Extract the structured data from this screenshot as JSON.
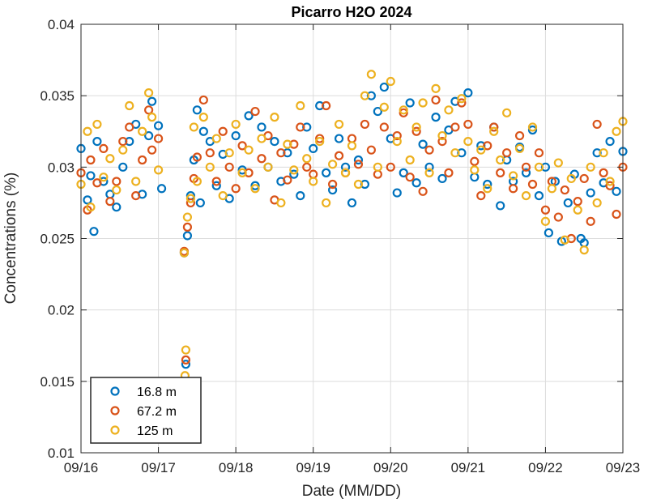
{
  "chart_data": {
    "type": "scatter",
    "title": "Picarro H2O 2024",
    "xlabel": "Date (MM/DD)",
    "ylabel": "Concentrations (%)",
    "xlim": [
      "09/16",
      "09/23"
    ],
    "ylim": [
      0.01,
      0.04
    ],
    "x_ticks": [
      "09/16",
      "09/17",
      "09/18",
      "09/19",
      "09/20",
      "09/21",
      "09/22",
      "09/23"
    ],
    "y_ticks": [
      "0.01",
      "0.015",
      "0.02",
      "0.025",
      "0.03",
      "0.035",
      "0.04"
    ],
    "grid": true,
    "legend_position": "bottom-left",
    "series": [
      {
        "name": "16.8 m",
        "color": "#0072BD",
        "points": [
          [
            "09/16 00:00",
            0.0313
          ],
          [
            "09/16 02:00",
            0.0277
          ],
          [
            "09/16 03:00",
            0.0294
          ],
          [
            "09/16 04:00",
            0.0255
          ],
          [
            "09/16 05:00",
            0.0318
          ],
          [
            "09/16 07:00",
            0.029
          ],
          [
            "09/16 09:00",
            0.0281
          ],
          [
            "09/16 11:00",
            0.0272
          ],
          [
            "09/16 13:00",
            0.03
          ],
          [
            "09/16 15:00",
            0.0318
          ],
          [
            "09/16 17:00",
            0.033
          ],
          [
            "09/16 19:00",
            0.0281
          ],
          [
            "09/16 21:00",
            0.0322
          ],
          [
            "09/16 22:00",
            0.0346
          ],
          [
            "09/17 00:00",
            0.0329
          ],
          [
            "09/17 01:00",
            0.0285
          ],
          [
            "09/17 08:00",
            0.024
          ],
          [
            "09/17 08:30",
            0.0162
          ],
          [
            "09/17 09:00",
            0.0252
          ],
          [
            "09/17 10:00",
            0.028
          ],
          [
            "09/17 11:00",
            0.0305
          ],
          [
            "09/17 12:00",
            0.034
          ],
          [
            "09/17 13:00",
            0.0275
          ],
          [
            "09/17 14:00",
            0.0325
          ],
          [
            "09/17 16:00",
            0.0318
          ],
          [
            "09/17 18:00",
            0.0287
          ],
          [
            "09/17 20:00",
            0.0309
          ],
          [
            "09/17 22:00",
            0.0278
          ],
          [
            "09/18 00:00",
            0.0322
          ],
          [
            "09/18 02:00",
            0.0298
          ],
          [
            "09/18 04:00",
            0.0336
          ],
          [
            "09/18 06:00",
            0.0287
          ],
          [
            "09/18 08:00",
            0.0328
          ],
          [
            "09/18 10:00",
            0.03
          ],
          [
            "09/18 12:00",
            0.0318
          ],
          [
            "09/18 14:00",
            0.029
          ],
          [
            "09/18 16:00",
            0.031
          ],
          [
            "09/18 18:00",
            0.0295
          ],
          [
            "09/18 20:00",
            0.028
          ],
          [
            "09/18 22:00",
            0.0328
          ],
          [
            "09/19 00:00",
            0.0313
          ],
          [
            "09/19 02:00",
            0.0343
          ],
          [
            "09/19 04:00",
            0.0296
          ],
          [
            "09/19 06:00",
            0.0284
          ],
          [
            "09/19 08:00",
            0.032
          ],
          [
            "09/19 10:00",
            0.03
          ],
          [
            "09/19 12:00",
            0.0275
          ],
          [
            "09/19 14:00",
            0.0305
          ],
          [
            "09/19 16:00",
            0.0288
          ],
          [
            "09/19 18:00",
            0.035
          ],
          [
            "09/19 20:00",
            0.0339
          ],
          [
            "09/19 22:00",
            0.0356
          ],
          [
            "09/20 00:00",
            0.032
          ],
          [
            "09/20 02:00",
            0.0282
          ],
          [
            "09/20 04:00",
            0.0296
          ],
          [
            "09/20 06:00",
            0.0345
          ],
          [
            "09/20 08:00",
            0.0289
          ],
          [
            "09/20 10:00",
            0.0316
          ],
          [
            "09/20 12:00",
            0.03
          ],
          [
            "09/20 14:00",
            0.0335
          ],
          [
            "09/20 16:00",
            0.0292
          ],
          [
            "09/20 18:00",
            0.0326
          ],
          [
            "09/20 20:00",
            0.0346
          ],
          [
            "09/20 22:00",
            0.031
          ],
          [
            "09/21 00:00",
            0.0352
          ],
          [
            "09/21 02:00",
            0.0293
          ],
          [
            "09/21 04:00",
            0.0315
          ],
          [
            "09/21 06:00",
            0.0288
          ],
          [
            "09/21 08:00",
            0.0328
          ],
          [
            "09/21 10:00",
            0.0273
          ],
          [
            "09/21 12:00",
            0.0305
          ],
          [
            "09/21 14:00",
            0.029
          ],
          [
            "09/21 16:00",
            0.0314
          ],
          [
            "09/21 18:00",
            0.0296
          ],
          [
            "09/21 20:00",
            0.0326
          ],
          [
            "09/21 22:00",
            0.028
          ],
          [
            "09/22 00:00",
            0.03
          ],
          [
            "09/22 01:00",
            0.0254
          ],
          [
            "09/22 03:00",
            0.029
          ],
          [
            "09/22 05:00",
            0.0248
          ],
          [
            "09/22 07:00",
            0.0275
          ],
          [
            "09/22 09:00",
            0.0295
          ],
          [
            "09/22 11:00",
            0.025
          ],
          [
            "09/22 12:00",
            0.0247
          ],
          [
            "09/22 14:00",
            0.0282
          ],
          [
            "09/22 16:00",
            0.031
          ],
          [
            "09/22 18:00",
            0.0289
          ],
          [
            "09/22 20:00",
            0.0318
          ],
          [
            "09/22 22:00",
            0.0283
          ],
          [
            "09/23 00:00",
            0.0311
          ]
        ]
      },
      {
        "name": "67.2 m",
        "color": "#D95319",
        "points": [
          [
            "09/16 00:00",
            0.0296
          ],
          [
            "09/16 02:00",
            0.027
          ],
          [
            "09/16 03:00",
            0.0305
          ],
          [
            "09/16 05:00",
            0.0289
          ],
          [
            "09/16 07:00",
            0.0313
          ],
          [
            "09/16 09:00",
            0.0276
          ],
          [
            "09/16 11:00",
            0.029
          ],
          [
            "09/16 13:00",
            0.0318
          ],
          [
            "09/16 15:00",
            0.0328
          ],
          [
            "09/16 17:00",
            0.028
          ],
          [
            "09/16 19:00",
            0.0305
          ],
          [
            "09/16 21:00",
            0.034
          ],
          [
            "09/16 22:00",
            0.0312
          ],
          [
            "09/17 00:00",
            0.032
          ],
          [
            "09/17 08:00",
            0.0241
          ],
          [
            "09/17 08:30",
            0.0165
          ],
          [
            "09/17 09:00",
            0.0258
          ],
          [
            "09/17 10:00",
            0.0275
          ],
          [
            "09/17 11:00",
            0.0292
          ],
          [
            "09/17 12:00",
            0.0307
          ],
          [
            "09/17 14:00",
            0.0347
          ],
          [
            "09/17 16:00",
            0.031
          ],
          [
            "09/17 18:00",
            0.029
          ],
          [
            "09/17 20:00",
            0.0325
          ],
          [
            "09/17 22:00",
            0.03
          ],
          [
            "09/18 00:00",
            0.0285
          ],
          [
            "09/18 02:00",
            0.0315
          ],
          [
            "09/18 04:00",
            0.0296
          ],
          [
            "09/18 06:00",
            0.0339
          ],
          [
            "09/18 08:00",
            0.0306
          ],
          [
            "09/18 10:00",
            0.0322
          ],
          [
            "09/18 12:00",
            0.0277
          ],
          [
            "09/18 14:00",
            0.031
          ],
          [
            "09/18 16:00",
            0.0291
          ],
          [
            "09/18 18:00",
            0.0316
          ],
          [
            "09/18 20:00",
            0.0328
          ],
          [
            "09/18 22:00",
            0.03
          ],
          [
            "09/19 00:00",
            0.0295
          ],
          [
            "09/19 02:00",
            0.032
          ],
          [
            "09/19 04:00",
            0.0343
          ],
          [
            "09/19 06:00",
            0.0288
          ],
          [
            "09/19 08:00",
            0.0308
          ],
          [
            "09/19 10:00",
            0.0296
          ],
          [
            "09/19 12:00",
            0.032
          ],
          [
            "09/19 14:00",
            0.0302
          ],
          [
            "09/19 16:00",
            0.033
          ],
          [
            "09/19 18:00",
            0.0312
          ],
          [
            "09/19 20:00",
            0.0295
          ],
          [
            "09/19 22:00",
            0.0328
          ],
          [
            "09/20 00:00",
            0.03
          ],
          [
            "09/20 02:00",
            0.0322
          ],
          [
            "09/20 04:00",
            0.0338
          ],
          [
            "09/20 06:00",
            0.0293
          ],
          [
            "09/20 08:00",
            0.0325
          ],
          [
            "09/20 10:00",
            0.0283
          ],
          [
            "09/20 12:00",
            0.0312
          ],
          [
            "09/20 14:00",
            0.0347
          ],
          [
            "09/20 16:00",
            0.0318
          ],
          [
            "09/20 18:00",
            0.0296
          ],
          [
            "09/20 20:00",
            0.0328
          ],
          [
            "09/20 22:00",
            0.0345
          ],
          [
            "09/21 00:00",
            0.033
          ],
          [
            "09/21 02:00",
            0.0304
          ],
          [
            "09/21 04:00",
            0.028
          ],
          [
            "09/21 06:00",
            0.0315
          ],
          [
            "09/21 08:00",
            0.0328
          ],
          [
            "09/21 10:00",
            0.0296
          ],
          [
            "09/21 12:00",
            0.031
          ],
          [
            "09/21 14:00",
            0.0285
          ],
          [
            "09/21 16:00",
            0.0322
          ],
          [
            "09/21 18:00",
            0.03
          ],
          [
            "09/21 20:00",
            0.0288
          ],
          [
            "09/21 22:00",
            0.031
          ],
          [
            "09/22 00:00",
            0.027
          ],
          [
            "09/22 02:00",
            0.029
          ],
          [
            "09/22 04:00",
            0.0265
          ],
          [
            "09/22 06:00",
            0.0284
          ],
          [
            "09/22 08:00",
            0.025
          ],
          [
            "09/22 10:00",
            0.0276
          ],
          [
            "09/22 12:00",
            0.0292
          ],
          [
            "09/22 14:00",
            0.0262
          ],
          [
            "09/22 16:00",
            0.033
          ],
          [
            "09/22 18:00",
            0.0296
          ],
          [
            "09/22 20:00",
            0.0287
          ],
          [
            "09/22 22:00",
            0.0267
          ],
          [
            "09/23 00:00",
            0.03
          ]
        ]
      },
      {
        "name": "125 m",
        "color": "#EDB120",
        "points": [
          [
            "09/16 00:00",
            0.0288
          ],
          [
            "09/16 02:00",
            0.0325
          ],
          [
            "09/16 03:00",
            0.0272
          ],
          [
            "09/16 05:00",
            0.033
          ],
          [
            "09/16 07:00",
            0.0293
          ],
          [
            "09/16 09:00",
            0.0306
          ],
          [
            "09/16 11:00",
            0.0284
          ],
          [
            "09/16 13:00",
            0.0312
          ],
          [
            "09/16 15:00",
            0.0343
          ],
          [
            "09/16 17:00",
            0.029
          ],
          [
            "09/16 19:00",
            0.0325
          ],
          [
            "09/16 21:00",
            0.0352
          ],
          [
            "09/16 22:00",
            0.0335
          ],
          [
            "09/17 00:00",
            0.0298
          ],
          [
            "09/17 08:00",
            0.024
          ],
          [
            "09/17 08:15",
            0.0154
          ],
          [
            "09/17 08:30",
            0.0172
          ],
          [
            "09/17 09:00",
            0.0265
          ],
          [
            "09/17 10:00",
            0.0278
          ],
          [
            "09/17 11:00",
            0.0328
          ],
          [
            "09/17 12:00",
            0.029
          ],
          [
            "09/17 14:00",
            0.0335
          ],
          [
            "09/17 16:00",
            0.03
          ],
          [
            "09/17 18:00",
            0.032
          ],
          [
            "09/17 20:00",
            0.028
          ],
          [
            "09/17 22:00",
            0.031
          ],
          [
            "09/18 00:00",
            0.033
          ],
          [
            "09/18 02:00",
            0.0296
          ],
          [
            "09/18 04:00",
            0.0312
          ],
          [
            "09/18 06:00",
            0.0285
          ],
          [
            "09/18 08:00",
            0.032
          ],
          [
            "09/18 10:00",
            0.03
          ],
          [
            "09/18 12:00",
            0.0335
          ],
          [
            "09/18 14:00",
            0.0275
          ],
          [
            "09/18 16:00",
            0.0316
          ],
          [
            "09/18 18:00",
            0.0298
          ],
          [
            "09/18 20:00",
            0.0343
          ],
          [
            "09/18 22:00",
            0.0306
          ],
          [
            "09/19 00:00",
            0.029
          ],
          [
            "09/19 02:00",
            0.0318
          ],
          [
            "09/19 04:00",
            0.0275
          ],
          [
            "09/19 06:00",
            0.0302
          ],
          [
            "09/19 08:00",
            0.033
          ],
          [
            "09/19 10:00",
            0.0296
          ],
          [
            "09/19 12:00",
            0.0315
          ],
          [
            "09/19 14:00",
            0.0288
          ],
          [
            "09/19 16:00",
            0.035
          ],
          [
            "09/19 18:00",
            0.0365
          ],
          [
            "09/19 20:00",
            0.03
          ],
          [
            "09/19 22:00",
            0.0342
          ],
          [
            "09/20 00:00",
            0.036
          ],
          [
            "09/20 02:00",
            0.0318
          ],
          [
            "09/20 04:00",
            0.034
          ],
          [
            "09/20 06:00",
            0.0305
          ],
          [
            "09/20 08:00",
            0.0328
          ],
          [
            "09/20 10:00",
            0.0345
          ],
          [
            "09/20 12:00",
            0.0296
          ],
          [
            "09/20 14:00",
            0.0355
          ],
          [
            "09/20 16:00",
            0.0322
          ],
          [
            "09/20 18:00",
            0.034
          ],
          [
            "09/20 20:00",
            0.031
          ],
          [
            "09/20 22:00",
            0.0348
          ],
          [
            "09/21 00:00",
            0.0318
          ],
          [
            "09/21 02:00",
            0.0298
          ],
          [
            "09/21 04:00",
            0.0312
          ],
          [
            "09/21 06:00",
            0.0285
          ],
          [
            "09/21 08:00",
            0.0325
          ],
          [
            "09/21 10:00",
            0.0305
          ],
          [
            "09/21 12:00",
            0.0338
          ],
          [
            "09/21 14:00",
            0.0294
          ],
          [
            "09/21 16:00",
            0.0313
          ],
          [
            "09/21 18:00",
            0.028
          ],
          [
            "09/21 20:00",
            0.0328
          ],
          [
            "09/21 22:00",
            0.03
          ],
          [
            "09/22 00:00",
            0.0262
          ],
          [
            "09/22 02:00",
            0.0285
          ],
          [
            "09/22 04:00",
            0.0303
          ],
          [
            "09/22 06:00",
            0.0249
          ],
          [
            "09/22 08:00",
            0.0292
          ],
          [
            "09/22 10:00",
            0.027
          ],
          [
            "09/22 12:00",
            0.0242
          ],
          [
            "09/22 14:00",
            0.03
          ],
          [
            "09/22 16:00",
            0.0275
          ],
          [
            "09/22 18:00",
            0.031
          ],
          [
            "09/22 20:00",
            0.029
          ],
          [
            "09/22 22:00",
            0.0325
          ],
          [
            "09/23 00:00",
            0.0332
          ]
        ]
      }
    ]
  }
}
